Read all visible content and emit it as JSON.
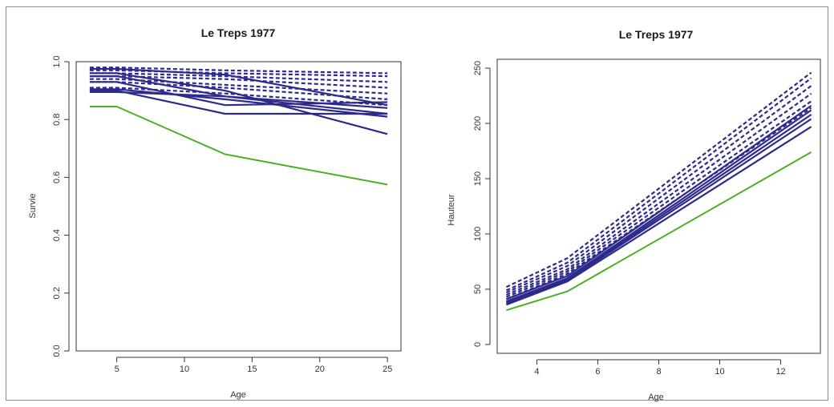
{
  "chart_data": [
    {
      "type": "line",
      "title": "Le Treps 1977",
      "xlabel": "Age",
      "ylabel": "Survie",
      "xlim": [
        2,
        26
      ],
      "ylim": [
        0,
        1
      ],
      "xticks": [
        5,
        10,
        15,
        20,
        25
      ],
      "yticks": [
        0.0,
        0.2,
        0.4,
        0.6,
        0.8,
        1.0
      ],
      "ytick_labels": [
        "0.0",
        "0.2",
        "0.4",
        "0.6",
        "0.8",
        "1.0"
      ],
      "colors": {
        "main": "#2e2a8c",
        "reference": "#4caf28"
      },
      "series": [
        {
          "style": "dashed",
          "x": [
            3,
            5,
            13,
            25
          ],
          "y": [
            0.98,
            0.98,
            0.97,
            0.96
          ]
        },
        {
          "style": "dashed",
          "x": [
            3,
            5,
            13,
            25
          ],
          "y": [
            0.97,
            0.97,
            0.96,
            0.95
          ]
        },
        {
          "style": "dashed",
          "x": [
            3,
            5,
            13,
            25
          ],
          "y": [
            0.96,
            0.96,
            0.95,
            0.93
          ]
        },
        {
          "style": "dashed",
          "x": [
            3,
            5,
            13,
            25
          ],
          "y": [
            0.95,
            0.95,
            0.94,
            0.91
          ]
        },
        {
          "style": "dashed",
          "x": [
            3,
            5,
            13,
            25
          ],
          "y": [
            0.94,
            0.94,
            0.92,
            0.89
          ]
        },
        {
          "style": "dashed",
          "x": [
            3,
            5,
            13,
            25
          ],
          "y": [
            0.93,
            0.93,
            0.91,
            0.87
          ]
        },
        {
          "style": "dashed",
          "x": [
            3,
            5,
            13,
            25
          ],
          "y": [
            0.91,
            0.91,
            0.89,
            0.85
          ]
        },
        {
          "style": "solid",
          "x": [
            3,
            5,
            13,
            25
          ],
          "y": [
            0.975,
            0.975,
            0.955,
            0.85
          ]
        },
        {
          "style": "solid",
          "x": [
            3,
            5,
            13,
            25
          ],
          "y": [
            0.96,
            0.96,
            0.9,
            0.75
          ]
        },
        {
          "style": "solid",
          "x": [
            3,
            5,
            13,
            25
          ],
          "y": [
            0.95,
            0.95,
            0.88,
            0.82
          ]
        },
        {
          "style": "solid",
          "x": [
            3,
            5,
            13,
            25
          ],
          "y": [
            0.93,
            0.93,
            0.85,
            0.86
          ]
        },
        {
          "style": "solid",
          "x": [
            3,
            5,
            13,
            25
          ],
          "y": [
            0.905,
            0.905,
            0.87,
            0.81
          ]
        },
        {
          "style": "solid",
          "x": [
            3,
            5,
            13,
            25
          ],
          "y": [
            0.9,
            0.9,
            0.82,
            0.82
          ]
        },
        {
          "style": "solid",
          "x": [
            3,
            5,
            13,
            25
          ],
          "y": [
            0.895,
            0.895,
            0.88,
            0.84
          ]
        },
        {
          "style": "solid",
          "color": "reference",
          "x": [
            3,
            5,
            13,
            25
          ],
          "y": [
            0.845,
            0.845,
            0.68,
            0.575
          ]
        }
      ]
    },
    {
      "type": "line",
      "title": "Le Treps 1977",
      "xlabel": "Age",
      "ylabel": "Hauteur",
      "xlim": [
        2.7,
        13.3
      ],
      "ylim": [
        -8,
        258
      ],
      "xticks": [
        4,
        6,
        8,
        10,
        12
      ],
      "yticks": [
        0,
        50,
        100,
        150,
        200,
        250
      ],
      "ytick_labels": [
        "0",
        "50",
        "100",
        "150",
        "200",
        "250"
      ],
      "colors": {
        "main": "#2e2a8c",
        "reference": "#4caf28"
      },
      "series": [
        {
          "style": "dashed",
          "x": [
            3,
            5,
            13
          ],
          "y": [
            52,
            78,
            246
          ]
        },
        {
          "style": "dashed",
          "x": [
            3,
            5,
            13
          ],
          "y": [
            49,
            74,
            241
          ]
        },
        {
          "style": "dashed",
          "x": [
            3,
            5,
            13
          ],
          "y": [
            47,
            71,
            234
          ]
        },
        {
          "style": "dashed",
          "x": [
            3,
            5,
            13
          ],
          "y": [
            45,
            68,
            227
          ]
        },
        {
          "style": "dashed",
          "x": [
            3,
            5,
            13
          ],
          "y": [
            43,
            66,
            220
          ]
        },
        {
          "style": "dashed",
          "x": [
            3,
            5,
            13
          ],
          "y": [
            41,
            64,
            214
          ]
        },
        {
          "style": "solid",
          "x": [
            3,
            5,
            13
          ],
          "y": [
            41,
            62,
            216
          ]
        },
        {
          "style": "solid",
          "x": [
            3,
            5,
            13
          ],
          "y": [
            39,
            60,
            212
          ]
        },
        {
          "style": "solid",
          "x": [
            3,
            5,
            13
          ],
          "y": [
            38,
            59,
            208
          ]
        },
        {
          "style": "solid",
          "x": [
            3,
            5,
            13
          ],
          "y": [
            37,
            58,
            204
          ]
        },
        {
          "style": "solid",
          "x": [
            3,
            5,
            13
          ],
          "y": [
            36,
            57,
            197
          ]
        },
        {
          "style": "solid",
          "color": "reference",
          "x": [
            3,
            5,
            13
          ],
          "y": [
            31,
            48,
            174
          ]
        }
      ]
    }
  ]
}
